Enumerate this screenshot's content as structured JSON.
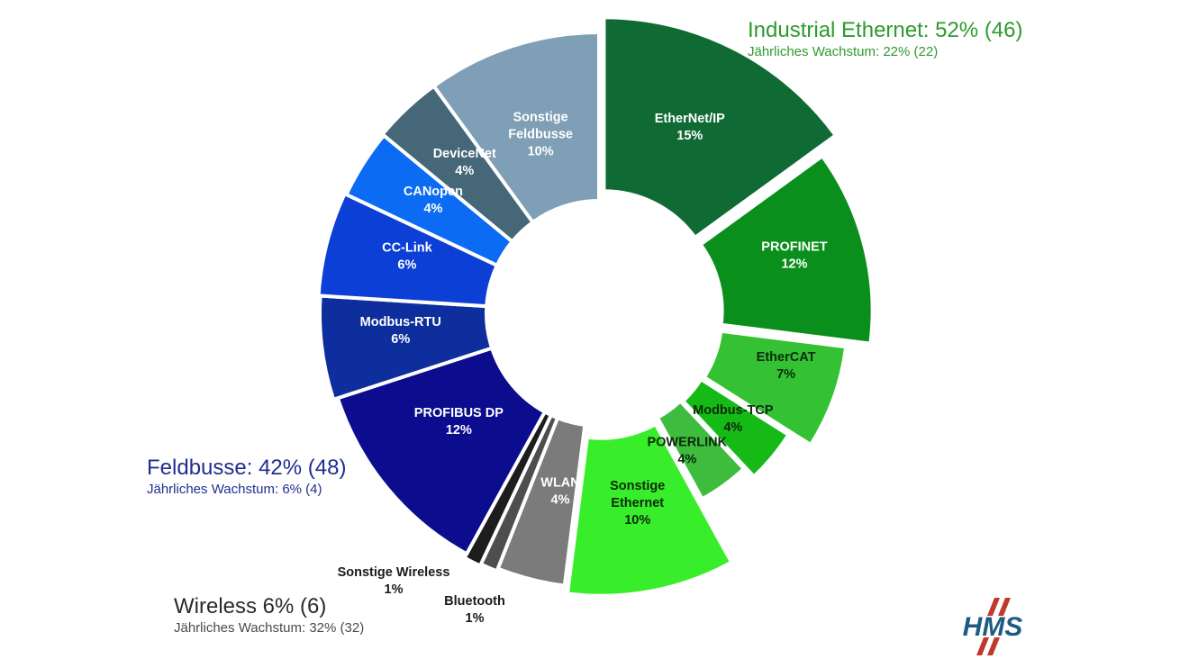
{
  "chart_data": {
    "type": "pie",
    "variant": "donut",
    "slices": [
      {
        "label": "EtherNet/IP",
        "value": 15,
        "value_label": "15%",
        "color": "#0f6b33"
      },
      {
        "label": "PROFINET",
        "value": 12,
        "value_label": "12%",
        "color": "#0a8f1c"
      },
      {
        "label": "EtherCAT",
        "value": 7,
        "value_label": "7%",
        "color": "#34c234"
      },
      {
        "label": "Modbus-TCP",
        "value": 4,
        "value_label": "4%",
        "color": "#16ba16"
      },
      {
        "label": "POWERLINK",
        "value": 4,
        "value_label": "4%",
        "color": "#3ebc3e"
      },
      {
        "label": "Sonstige Ethernet",
        "value": 10,
        "value_label": "10%",
        "color": "#38ee2a"
      },
      {
        "label": "WLAN",
        "value": 4,
        "value_label": "4%",
        "color": "#7b7b7b"
      },
      {
        "label": "Bluetooth",
        "value": 1,
        "value_label": "1%",
        "color": "#4e4e4e"
      },
      {
        "label": "Sonstige Wireless",
        "value": 1,
        "value_label": "1%",
        "color": "#1d1d1d"
      },
      {
        "label": "PROFIBUS DP",
        "value": 12,
        "value_label": "12%",
        "color": "#0c0c8e"
      },
      {
        "label": "Modbus-RTU",
        "value": 6,
        "value_label": "6%",
        "color": "#0d2e9c"
      },
      {
        "label": "CC-Link",
        "value": 6,
        "value_label": "6%",
        "color": "#0c3fd6"
      },
      {
        "label": "CANopen",
        "value": 4,
        "value_label": "4%",
        "color": "#0b6bf2"
      },
      {
        "label": "DeviceNet",
        "value": 4,
        "value_label": "4%",
        "color": "#456778"
      },
      {
        "label": "Sonstige Feldbusse",
        "value": 10,
        "value_label": "10%",
        "color": "#7e9fb5"
      }
    ],
    "groups": [
      {
        "title": "Industrial Ethernet: 52% (46)",
        "subtitle": "Jährliches Wachstum: 22% (22)",
        "color": "#2e9a2e"
      },
      {
        "title": "Feldbusse: 42% (48)",
        "subtitle": "Jährliches Wachstum: 6% (4)",
        "color": "#1f2f8f"
      },
      {
        "title": "Wireless 6% (6)",
        "subtitle": "Jährliches Wachstum: 32% (32)",
        "color": "#2a2a2a"
      }
    ]
  },
  "logo": {
    "text": "HMS",
    "color": "#1d5b83",
    "accent_color": "#c0392b"
  }
}
